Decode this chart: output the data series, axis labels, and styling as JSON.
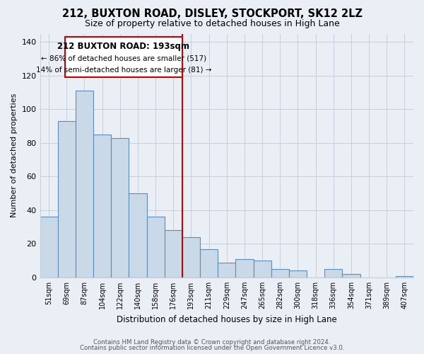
{
  "title": "212, BUXTON ROAD, DISLEY, STOCKPORT, SK12 2LZ",
  "subtitle": "Size of property relative to detached houses in High Lane",
  "xlabel": "Distribution of detached houses by size in High Lane",
  "ylabel": "Number of detached properties",
  "bar_labels": [
    "51sqm",
    "69sqm",
    "87sqm",
    "104sqm",
    "122sqm",
    "140sqm",
    "158sqm",
    "176sqm",
    "193sqm",
    "211sqm",
    "229sqm",
    "247sqm",
    "265sqm",
    "282sqm",
    "300sqm",
    "318sqm",
    "336sqm",
    "354sqm",
    "371sqm",
    "389sqm",
    "407sqm"
  ],
  "bar_values": [
    36,
    93,
    111,
    85,
    83,
    50,
    36,
    28,
    24,
    17,
    9,
    11,
    10,
    5,
    4,
    0,
    5,
    2,
    0,
    0,
    1
  ],
  "bar_color": "#c9d9e8",
  "bar_edge_color": "#5b8db8",
  "bar_linewidth": 0.8,
  "vline_x": 8,
  "vline_color": "#cc0000",
  "vline_linewidth": 1.5,
  "annotation_title": "212 BUXTON ROAD: 193sqm",
  "annotation_line1": "← 86% of detached houses are smaller (517)",
  "annotation_line2": "14% of semi-detached houses are larger (81) →",
  "annotation_box_color": "#ffffff",
  "annotation_box_edge_color": "#cc0000",
  "ylim": [
    0,
    145
  ],
  "yticks": [
    0,
    20,
    40,
    60,
    80,
    100,
    120,
    140
  ],
  "grid_color": "#c8d0dc",
  "background_color": "#eaeff6",
  "title_fontsize": 10.5,
  "subtitle_fontsize": 9,
  "footer_line1": "Contains HM Land Registry data © Crown copyright and database right 2024.",
  "footer_line2": "Contains public sector information licensed under the Open Government Licence v3.0."
}
